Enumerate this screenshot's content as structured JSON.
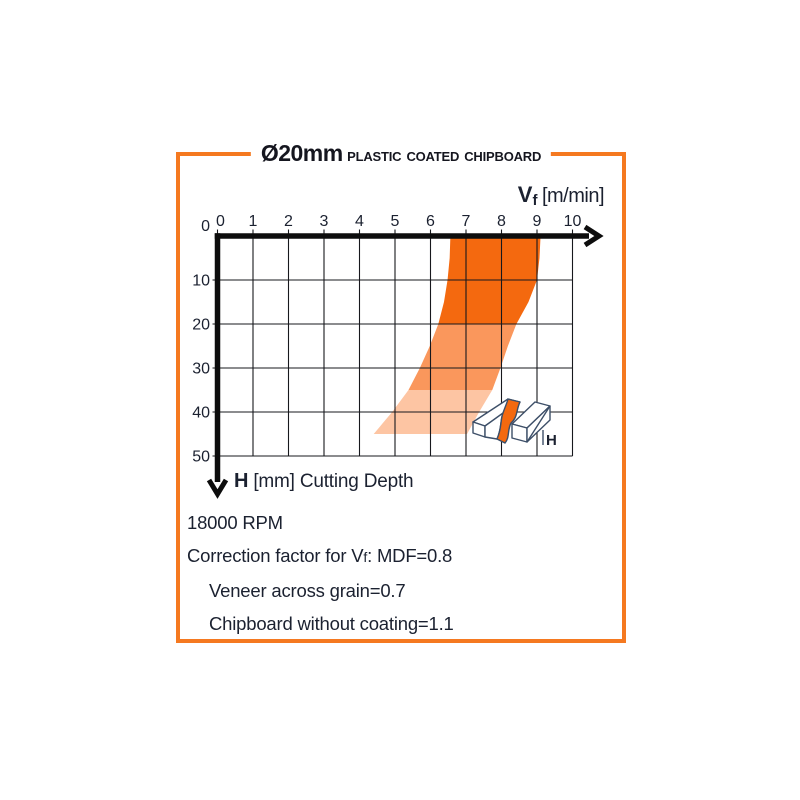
{
  "frame": {
    "title_size": "Ø20mm",
    "title_material": "Plastic Coated Chipboard",
    "border_color": "#f57920"
  },
  "chart_data": {
    "type": "area",
    "title": "Ø20mm Plastic Coated Chipboard",
    "xlabel_v": "V",
    "xlabel_sub": "f",
    "xlabel_units": "[m/min]",
    "ylabel_h": "H",
    "ylabel_rest": "[mm] Cutting Depth",
    "x_ticks": [
      "0",
      "1",
      "2",
      "3",
      "4",
      "5",
      "6",
      "7",
      "8",
      "9",
      "10"
    ],
    "y_ticks": [
      "0",
      "10",
      "20",
      "30",
      "40",
      "50"
    ],
    "xlim": [
      0,
      10
    ],
    "ylim": [
      0,
      50
    ],
    "grid": true,
    "band": {
      "edge_y": [
        0,
        5,
        10,
        15,
        20,
        25,
        30,
        35,
        40,
        45
      ],
      "x_left": [
        6.56,
        6.54,
        6.48,
        6.38,
        6.22,
        5.98,
        5.7,
        5.38,
        4.92,
        4.4
      ],
      "x_right": [
        9.1,
        9.07,
        9.0,
        8.76,
        8.42,
        8.18,
        7.97,
        7.74,
        7.37,
        7.03
      ],
      "zones": [
        {
          "y0": 0,
          "y1": 20,
          "color": "#f4690f"
        },
        {
          "y0": 20,
          "y1": 35,
          "color": "#fa975c"
        },
        {
          "y0": 35,
          "y1": 45,
          "color": "#fdc5a3"
        }
      ]
    },
    "ink_color": "#1b2130",
    "accent_color": "#f4690f"
  },
  "icon": {
    "label": "H"
  },
  "notes": {
    "rpm": "18000 RPM",
    "correction_intro": "Correction factor for V",
    "correction_sub": "f",
    "correction_rest": ": MDF=0.8",
    "veneer": "Veneer across grain=0.7",
    "chipboard": "Chipboard without coating=1.1"
  }
}
